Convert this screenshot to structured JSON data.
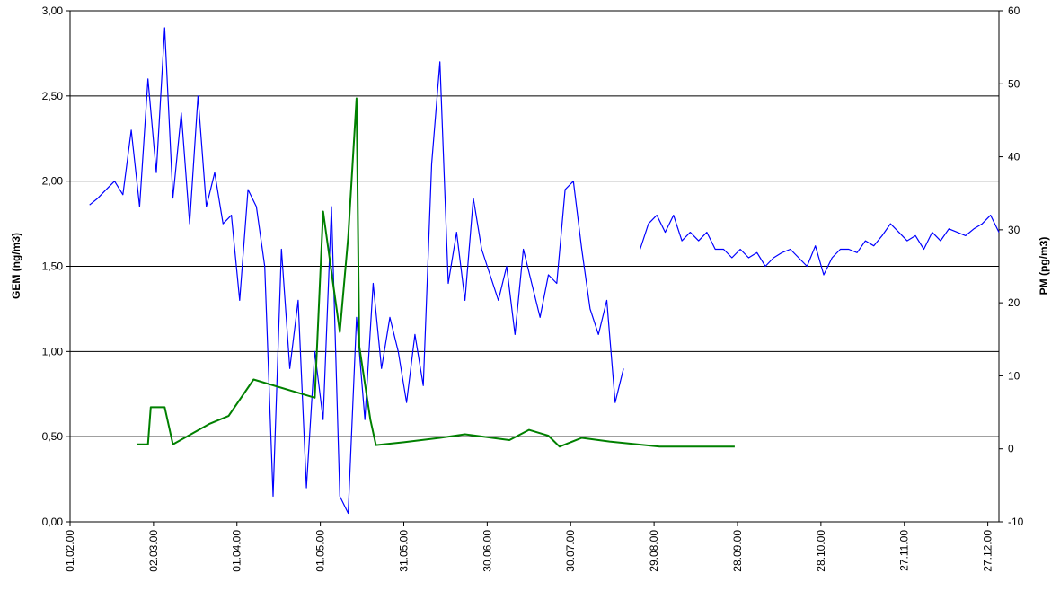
{
  "chart_data": {
    "type": "line",
    "ylabel": "GEM (ng/m3)",
    "y2label": "PM (pg/m3)",
    "ylabel_color": "#0000ff",
    "y2label_color": "#008080",
    "grid": true,
    "xlim": [
      "2000-02-01",
      "2000-12-31"
    ],
    "xticks": [
      {
        "value": "2000-02-01",
        "label": "01.02.00"
      },
      {
        "value": "2000-03-02",
        "label": "02.03.00"
      },
      {
        "value": "2000-04-01",
        "label": "01.04.00"
      },
      {
        "value": "2000-05-01",
        "label": "01.05.00"
      },
      {
        "value": "2000-05-31",
        "label": "31.05.00"
      },
      {
        "value": "2000-06-30",
        "label": "30.06.00"
      },
      {
        "value": "2000-07-30",
        "label": "30.07.00"
      },
      {
        "value": "2000-08-29",
        "label": "29.08.00"
      },
      {
        "value": "2000-09-28",
        "label": "28.09.00"
      },
      {
        "value": "2000-10-28",
        "label": "28.10.00"
      },
      {
        "value": "2000-11-27",
        "label": "27.11.00"
      },
      {
        "value": "2000-12-27",
        "label": "27.12.00"
      }
    ],
    "ylim": [
      0,
      3
    ],
    "yticks": [
      {
        "value": 0,
        "label": "0,00"
      },
      {
        "value": 0.5,
        "label": "0,50"
      },
      {
        "value": 1,
        "label": "1,00"
      },
      {
        "value": 1.5,
        "label": "1,50"
      },
      {
        "value": 2,
        "label": "2,00"
      },
      {
        "value": 2.5,
        "label": "2,50"
      },
      {
        "value": 3,
        "label": "3,00"
      }
    ],
    "y2lim": [
      -10,
      60
    ],
    "y2ticks": [
      -10,
      0,
      10,
      20,
      30,
      40,
      50,
      60
    ],
    "series": [
      {
        "color": "#0000ff",
        "axis": "y",
        "x": [
          "2000-02-08",
          "2000-02-11",
          "2000-02-14",
          "2000-02-17",
          "2000-02-20",
          "2000-02-23",
          "2000-02-26",
          "2000-02-29",
          "2000-03-03",
          "2000-03-06",
          "2000-03-09",
          "2000-03-12",
          "2000-03-15",
          "2000-03-18",
          "2000-03-21",
          "2000-03-24",
          "2000-03-27",
          "2000-03-30",
          "2000-04-02",
          "2000-04-05",
          "2000-04-08",
          "2000-04-11",
          "2000-04-14",
          "2000-04-17",
          "2000-04-20",
          "2000-04-23",
          "2000-04-26",
          "2000-04-29",
          "2000-05-02",
          "2000-05-05",
          "2000-05-08",
          "2000-05-11",
          "2000-05-14",
          "2000-05-17",
          "2000-05-20",
          "2000-05-23",
          "2000-05-26",
          "2000-05-29",
          "2000-06-01",
          "2000-06-04",
          "2000-06-07",
          "2000-06-10",
          "2000-06-13",
          "2000-06-16",
          "2000-06-19",
          "2000-06-22",
          "2000-06-25",
          "2000-06-28",
          "2000-07-01",
          "2000-07-04",
          "2000-07-07",
          "2000-07-10",
          "2000-07-13",
          "2000-07-16",
          "2000-07-19",
          "2000-07-22",
          "2000-07-25",
          "2000-07-28",
          "2000-07-31",
          "2000-08-03",
          "2000-08-06",
          "2000-08-09",
          "2000-08-12",
          "2000-08-15",
          "2000-08-18",
          "2000-08-21",
          "2000-08-24",
          "2000-08-27",
          "2000-08-30",
          "2000-09-02",
          "2000-09-05",
          "2000-09-08",
          "2000-09-11",
          "2000-09-14",
          "2000-09-17",
          "2000-09-20",
          "2000-09-23",
          "2000-09-26",
          "2000-09-29",
          "2000-10-02",
          "2000-10-05",
          "2000-10-08",
          "2000-10-11",
          "2000-10-14",
          "2000-10-17",
          "2000-10-20",
          "2000-10-23",
          "2000-10-26",
          "2000-10-29",
          "2000-11-01",
          "2000-11-04",
          "2000-11-07",
          "2000-11-10",
          "2000-11-13",
          "2000-11-16",
          "2000-11-19",
          "2000-11-22",
          "2000-11-25",
          "2000-11-28",
          "2000-12-01",
          "2000-12-04",
          "2000-12-07",
          "2000-12-10",
          "2000-12-13",
          "2000-12-16",
          "2000-12-19",
          "2000-12-22",
          "2000-12-25",
          "2000-12-28",
          "2000-12-31"
        ],
        "values": [
          1.86,
          1.9,
          1.95,
          2.0,
          1.92,
          2.3,
          1.85,
          2.6,
          2.05,
          2.9,
          1.9,
          2.4,
          1.75,
          2.5,
          1.85,
          2.05,
          1.75,
          1.8,
          1.3,
          1.95,
          1.85,
          1.5,
          0.15,
          1.6,
          0.9,
          1.3,
          0.2,
          1.0,
          0.6,
          1.85,
          0.15,
          0.05,
          1.2,
          0.6,
          1.4,
          0.9,
          1.2,
          1.0,
          0.7,
          1.1,
          0.8,
          2.1,
          2.7,
          1.4,
          1.7,
          1.3,
          1.9,
          1.6,
          1.45,
          1.3,
          1.5,
          1.1,
          1.6,
          1.4,
          1.2,
          1.45,
          1.4,
          1.95,
          2.0,
          1.6,
          1.25,
          1.1,
          1.3,
          0.7,
          0.9,
          null,
          1.6,
          1.75,
          1.8,
          1.7,
          1.8,
          1.65,
          1.7,
          1.65,
          1.7,
          1.6,
          1.6,
          1.55,
          1.6,
          1.55,
          1.58,
          1.5,
          1.55,
          1.58,
          1.6,
          1.55,
          1.5,
          1.62,
          1.45,
          1.55,
          1.6,
          1.6,
          1.58,
          1.65,
          1.62,
          1.68,
          1.75,
          1.7,
          1.65,
          1.68,
          1.6,
          1.7,
          1.65,
          1.72,
          1.7,
          1.68,
          1.72,
          1.75,
          1.8,
          1.7
        ]
      },
      {
        "color": "#008000",
        "axis": "y2",
        "x": [
          "2000-02-25",
          "2000-02-29",
          "2000-03-01",
          "2000-03-06",
          "2000-03-09",
          "2000-03-22",
          "2000-03-29",
          "2000-04-07",
          "2000-04-29",
          "2000-05-02",
          "2000-05-08",
          "2000-05-11",
          "2000-05-14",
          "2000-05-15",
          "2000-05-19",
          "2000-05-21",
          "2000-05-31",
          "2000-06-13",
          "2000-06-22",
          "2000-07-08",
          "2000-07-15",
          "2000-07-22",
          "2000-07-26",
          "2000-08-03",
          "2000-08-13",
          "2000-08-31",
          "2000-09-27"
        ],
        "values": [
          0.6,
          0.6,
          5.7,
          5.7,
          0.6,
          3.4,
          4.5,
          9.5,
          7,
          32.5,
          16,
          29,
          48,
          14,
          4,
          0.5,
          0.9,
          1.5,
          2,
          1.2,
          2.6,
          1.8,
          0.3,
          1.5,
          1,
          0.3,
          0.3
        ]
      }
    ]
  }
}
